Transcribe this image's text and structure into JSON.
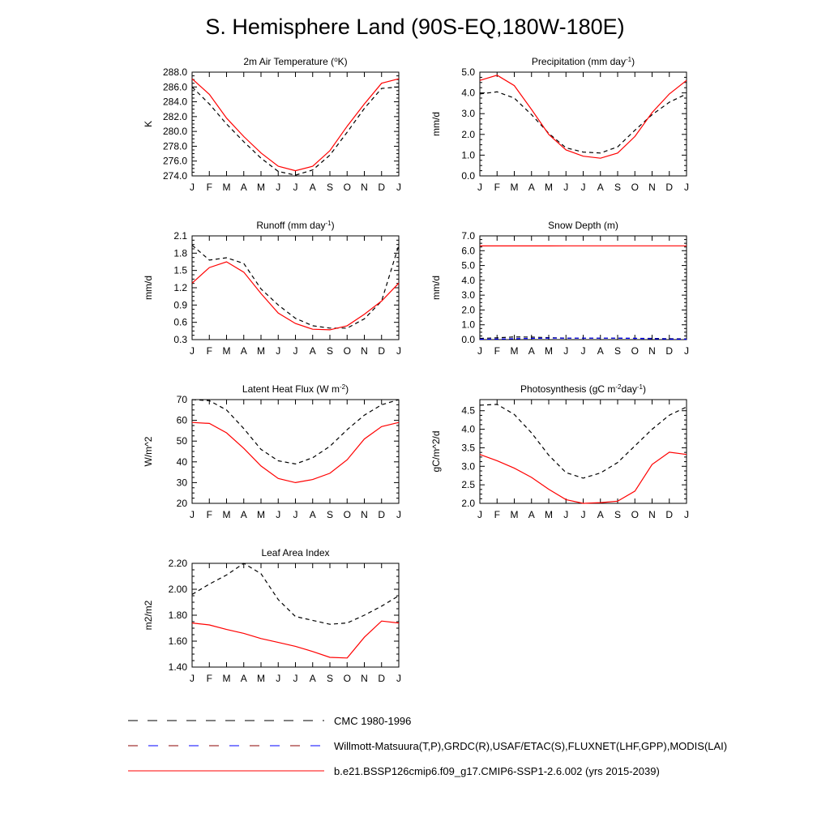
{
  "title": "S. Hemisphere Land (90S-EQ,180W-180E)",
  "chart_data": [
    {
      "type": "line",
      "title": "2m Air Temperature (°K)",
      "ylabel": "K",
      "xlabel": "",
      "categories": [
        "J",
        "F",
        "M",
        "A",
        "M",
        "J",
        "J",
        "A",
        "S",
        "O",
        "N",
        "D",
        "J"
      ],
      "ylim": [
        274,
        288
      ],
      "yticks": [
        "274.0",
        "276.0",
        "278.0",
        "280.0",
        "282.0",
        "284.0",
        "286.0",
        "288.0"
      ],
      "series": [
        {
          "name": "CMC 1980-1996",
          "style": "dash",
          "color": "#000000",
          "values": null
        },
        {
          "name": "Willmott-Matsuura(T,P),GRDC(R),USAF/ETAC(S),FLUXNET(LHF,GPP),MODIS(LAI)",
          "style": "dash",
          "color": "#000000",
          "values": [
            286.0,
            283.7,
            281.0,
            278.6,
            276.4,
            274.6,
            274.1,
            274.8,
            276.8,
            279.9,
            283.1,
            285.8,
            286.0
          ]
        },
        {
          "name": "b.e21.BSSP126cmip6.f09_g17.CMIP6-SSP1-2.6.002 (yrs 2015-2039)",
          "style": "solid",
          "color": "#ff0000",
          "values": [
            287.1,
            285.0,
            281.8,
            279.3,
            277.1,
            275.3,
            274.7,
            275.3,
            277.4,
            280.7,
            283.7,
            286.5,
            287.1
          ]
        }
      ]
    },
    {
      "type": "line",
      "title": "Precipitation (mm day-1)",
      "ylabel": "mm/d",
      "xlabel": "",
      "categories": [
        "J",
        "F",
        "M",
        "A",
        "M",
        "J",
        "J",
        "A",
        "S",
        "O",
        "N",
        "D",
        "J"
      ],
      "ylim": [
        0,
        5
      ],
      "yticks": [
        "0.0",
        "1.0",
        "2.0",
        "3.0",
        "4.0",
        "5.0"
      ],
      "series": [
        {
          "name": "CMC 1980-1996",
          "style": "dash",
          "color": "#000000",
          "values": null
        },
        {
          "name": "Willmott-Matsuura",
          "style": "dash",
          "color": "#000000",
          "values": [
            3.95,
            4.05,
            3.75,
            2.95,
            2.05,
            1.35,
            1.15,
            1.1,
            1.4,
            2.2,
            2.95,
            3.55,
            3.95
          ]
        },
        {
          "name": "b.e21.BSSP126cmip6",
          "style": "solid",
          "color": "#ff0000",
          "values": [
            4.6,
            4.85,
            4.35,
            3.2,
            2.0,
            1.25,
            0.95,
            0.85,
            1.1,
            1.9,
            3.05,
            3.95,
            4.6
          ]
        }
      ]
    },
    {
      "type": "line",
      "title": "Runoff (mm day-1)",
      "ylabel": "mm/d",
      "xlabel": "",
      "categories": [
        "J",
        "F",
        "M",
        "A",
        "M",
        "J",
        "J",
        "A",
        "S",
        "O",
        "N",
        "D",
        "J"
      ],
      "ylim": [
        0.3,
        2.1
      ],
      "yticks": [
        "0.3",
        "0.6",
        "0.9",
        "1.2",
        "1.5",
        "1.8",
        "2.1"
      ],
      "series": [
        {
          "name": "CMC 1980-1996",
          "style": "dash",
          "color": "#000000",
          "values": null
        },
        {
          "name": "GRDC",
          "style": "dash",
          "color": "#000000",
          "values": [
            1.94,
            1.68,
            1.72,
            1.62,
            1.18,
            0.9,
            0.67,
            0.54,
            0.5,
            0.5,
            0.66,
            0.97,
            1.94
          ]
        },
        {
          "name": "b.e21.BSSP126cmip6",
          "style": "solid",
          "color": "#ff0000",
          "values": [
            1.28,
            1.55,
            1.65,
            1.47,
            1.1,
            0.76,
            0.58,
            0.48,
            0.47,
            0.54,
            0.74,
            0.97,
            1.28
          ]
        }
      ]
    },
    {
      "type": "line",
      "title": "Snow Depth (m)",
      "ylabel": "mm/d",
      "xlabel": "",
      "categories": [
        "J",
        "F",
        "M",
        "A",
        "M",
        "J",
        "J",
        "A",
        "S",
        "O",
        "N",
        "D",
        "J"
      ],
      "ylim": [
        0,
        7
      ],
      "yticks": [
        "0.0",
        "1.0",
        "2.0",
        "3.0",
        "4.0",
        "5.0",
        "6.0",
        "7.0"
      ],
      "series": [
        {
          "name": "CMC 1980-1996",
          "style": "dash",
          "color": "#000000",
          "values": [
            0.08,
            0.12,
            0.18,
            0.17,
            0.13,
            0.1,
            0.1,
            0.1,
            0.1,
            0.09,
            0.08,
            0.06,
            0.05
          ]
        },
        {
          "name": "USAF/ETAC",
          "style": "dash",
          "color": "#0000ff",
          "values": [
            0.03,
            0.04,
            0.06,
            0.08,
            0.1,
            0.1,
            0.1,
            0.1,
            0.1,
            0.08,
            0.06,
            0.04,
            0.03
          ]
        },
        {
          "name": "b.e21.BSSP126cmip6",
          "style": "solid",
          "color": "#ff0000",
          "values": [
            6.32,
            6.32,
            6.32,
            6.32,
            6.32,
            6.33,
            6.33,
            6.33,
            6.33,
            6.33,
            6.33,
            6.33,
            6.33
          ]
        }
      ]
    },
    {
      "type": "line",
      "title": "Latent Heat Flux (W m-2)",
      "ylabel": "W/m^2",
      "xlabel": "",
      "categories": [
        "J",
        "F",
        "M",
        "A",
        "M",
        "J",
        "J",
        "A",
        "S",
        "O",
        "N",
        "D",
        "J"
      ],
      "ylim": [
        20,
        70
      ],
      "yticks": [
        "20",
        "30",
        "40",
        "50",
        "60",
        "70"
      ],
      "series": [
        {
          "name": "CMC 1980-1996",
          "style": "dash",
          "color": "#000000",
          "values": null
        },
        {
          "name": "FLUXNET",
          "style": "dash",
          "color": "#000000",
          "values": [
            70,
            69.5,
            65,
            56,
            46,
            40.5,
            39,
            42,
            47.5,
            55.5,
            62.5,
            67.5,
            70
          ]
        },
        {
          "name": "b.e21.BSSP126cmip6",
          "style": "solid",
          "color": "#ff0000",
          "values": [
            59,
            58.5,
            54,
            46.5,
            38,
            32,
            30,
            31.5,
            34.5,
            41,
            51,
            57,
            59
          ]
        }
      ]
    },
    {
      "type": "line",
      "title": "Photosynthesis (gC m-2day-1)",
      "ylabel": "gC/m^2/d",
      "xlabel": "",
      "categories": [
        "J",
        "F",
        "M",
        "A",
        "M",
        "J",
        "J",
        "A",
        "S",
        "O",
        "N",
        "D",
        "J"
      ],
      "ylim": [
        2.0,
        4.8
      ],
      "yticks": [
        "2.0",
        "2.5",
        "3.0",
        "3.5",
        "4.0",
        "4.5"
      ],
      "series": [
        {
          "name": "CMC 1980-1996",
          "style": "dash",
          "color": "#000000",
          "values": null
        },
        {
          "name": "FLUXNET",
          "style": "dash",
          "color": "#000000",
          "values": [
            4.65,
            4.67,
            4.4,
            3.9,
            3.3,
            2.83,
            2.68,
            2.82,
            3.1,
            3.55,
            4.0,
            4.38,
            4.6
          ]
        },
        {
          "name": "b.e21.BSSP126cmip6",
          "style": "solid",
          "color": "#ff0000",
          "values": [
            3.32,
            3.15,
            2.95,
            2.7,
            2.38,
            2.1,
            2.0,
            2.02,
            2.06,
            2.33,
            3.05,
            3.38,
            3.32
          ]
        }
      ]
    },
    {
      "type": "line",
      "title": "Leaf Area Index",
      "ylabel": "m2/m2",
      "xlabel": "",
      "categories": [
        "J",
        "F",
        "M",
        "A",
        "M",
        "J",
        "J",
        "A",
        "S",
        "O",
        "N",
        "D",
        "J"
      ],
      "ylim": [
        1.4,
        2.2
      ],
      "yticks": [
        "1.40",
        "1.60",
        "1.80",
        "2.00",
        "2.20"
      ],
      "series": [
        {
          "name": "CMC 1980-1996",
          "style": "dash",
          "color": "#000000",
          "values": null
        },
        {
          "name": "MODIS",
          "style": "dash",
          "color": "#000000",
          "values": [
            1.96,
            2.04,
            2.11,
            2.2,
            2.12,
            1.92,
            1.79,
            1.76,
            1.73,
            1.74,
            1.8,
            1.87,
            1.95
          ]
        },
        {
          "name": "b.e21.BSSP126cmip6",
          "style": "solid",
          "color": "#ff0000",
          "values": [
            1.74,
            1.725,
            1.69,
            1.66,
            1.62,
            1.59,
            1.56,
            1.52,
            1.475,
            1.47,
            1.63,
            1.755,
            1.74
          ]
        }
      ]
    }
  ],
  "legend": [
    {
      "label": "CMC 1980-1996",
      "style": "dash",
      "color": "#000000"
    },
    {
      "label": "Willmott-Matsuura(T,P),GRDC(R),USAF/ETAC(S),FLUXNET(LHF,GPP),MODIS(LAI)",
      "style": "dash",
      "color": "#000000",
      "colors": [
        "#8b0000",
        "#0000ff"
      ]
    },
    {
      "label": "b.e21.BSSP126cmip6.f09_g17.CMIP6-SSP1-2.6.002 (yrs 2015-2039)",
      "style": "solid",
      "color": "#ff0000"
    }
  ]
}
